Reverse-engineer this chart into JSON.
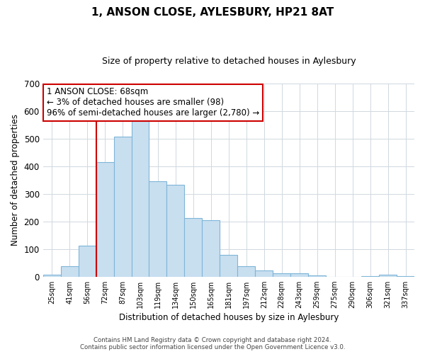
{
  "title": "1, ANSON CLOSE, AYLESBURY, HP21 8AT",
  "subtitle": "Size of property relative to detached houses in Aylesbury",
  "xlabel": "Distribution of detached houses by size in Aylesbury",
  "ylabel": "Number of detached properties",
  "bar_labels": [
    "25sqm",
    "41sqm",
    "56sqm",
    "72sqm",
    "87sqm",
    "103sqm",
    "119sqm",
    "134sqm",
    "150sqm",
    "165sqm",
    "181sqm",
    "197sqm",
    "212sqm",
    "228sqm",
    "243sqm",
    "259sqm",
    "275sqm",
    "290sqm",
    "306sqm",
    "321sqm",
    "337sqm"
  ],
  "bar_values": [
    8,
    38,
    113,
    415,
    508,
    575,
    345,
    333,
    212,
    205,
    80,
    37,
    23,
    12,
    13,
    5,
    0,
    0,
    2,
    8,
    2
  ],
  "bar_fill_color": "#c8dff0",
  "bar_edge_color": "#7fb5d8",
  "grid_color": "#d0d8e0",
  "vline_color": "#cc0000",
  "vline_x_index": 3,
  "ylim": [
    0,
    700
  ],
  "yticks": [
    0,
    100,
    200,
    300,
    400,
    500,
    600,
    700
  ],
  "annotation_text": "1 ANSON CLOSE: 68sqm\n← 3% of detached houses are smaller (98)\n96% of semi-detached houses are larger (2,780) →",
  "annotation_box_color": "#ffffff",
  "annotation_box_edge": "#cc0000",
  "footer_line1": "Contains HM Land Registry data © Crown copyright and database right 2024.",
  "footer_line2": "Contains public sector information licensed under the Open Government Licence v3.0."
}
